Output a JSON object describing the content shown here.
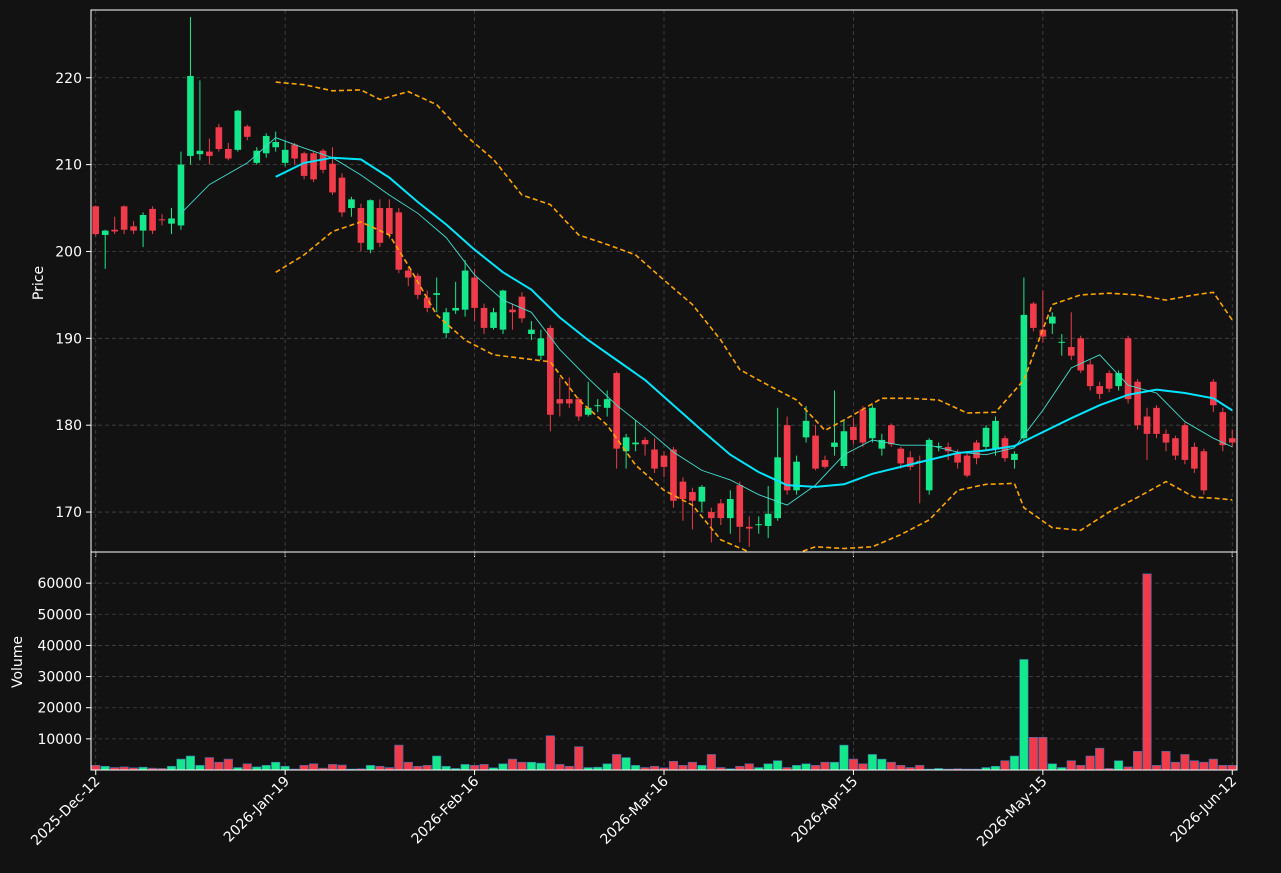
{
  "chart_data": [
    {
      "type": "candlestick",
      "ylabel": "Price",
      "xlim": [
        -0.5,
        120.5
      ],
      "ylim": [
        165.4,
        227.8
      ],
      "yticks": [
        170,
        180,
        190,
        200,
        210,
        220
      ],
      "grid": true,
      "up_color": "#14e88a",
      "down_color": "#ef3b4a",
      "open": [
        205.2,
        201.9,
        202.5,
        205.2,
        202.9,
        202.4,
        204.9,
        203.7,
        203.2,
        203,
        211,
        211.2,
        211.5,
        214.3,
        211.8,
        211.7,
        214.4,
        210.2,
        211.3,
        212,
        210.2,
        212.3,
        211.3,
        211.3,
        211.6,
        210.1,
        208.5,
        205,
        205,
        200.2,
        205,
        205,
        204.5,
        197.8,
        197.2,
        194.7,
        195,
        190.6,
        193.2,
        193.3,
        197,
        193.5,
        191.2,
        191,
        193.3,
        194.8,
        190.5,
        188,
        191.2,
        183,
        183,
        183,
        181.2,
        182.2,
        182,
        186,
        177,
        177.8,
        178.3,
        177.2,
        176.5,
        177.2,
        173.5,
        172.3,
        171.2,
        170,
        171,
        169.3,
        173.1,
        168.3,
        168.5,
        168.4,
        169.3,
        180,
        172.5,
        178.6,
        178.8,
        176,
        177.5,
        175.3,
        179.8,
        181.8,
        178.5,
        177.3,
        180,
        177.3,
        176.3,
        175.9,
        172.5,
        177.5,
        177.5,
        176.8,
        176.5,
        178,
        177.5,
        177.2,
        178.5,
        176,
        178.5,
        194,
        191,
        191.7,
        189.5,
        189,
        190,
        187,
        184.5,
        186,
        184.5,
        190,
        185,
        181,
        182,
        179,
        178.5,
        180,
        177.5,
        177,
        185,
        181.5,
        178.5
      ],
      "high": [
        205.3,
        202.5,
        204,
        205.3,
        203.5,
        204.5,
        205.2,
        204.3,
        205,
        211.5,
        227,
        219.7,
        213,
        214.7,
        212.5,
        216.3,
        214.6,
        212,
        213.6,
        213.8,
        212.8,
        212.5,
        211.5,
        211.6,
        211.8,
        212,
        209,
        206.3,
        205.5,
        206,
        206,
        206,
        205,
        198.2,
        197.5,
        195.5,
        197,
        193.5,
        196.5,
        199,
        198,
        194,
        193.5,
        195.6,
        194,
        195.3,
        192,
        191,
        191.5,
        185.5,
        185.5,
        183.2,
        185,
        183,
        184,
        186.2,
        179,
        180.6,
        178.6,
        178.5,
        177,
        177.5,
        174,
        172.8,
        173.1,
        170.5,
        171.5,
        172.5,
        173.5,
        169.5,
        169.5,
        173,
        182,
        181,
        176.5,
        182.2,
        180,
        176.5,
        184,
        180.5,
        180.8,
        182.2,
        182.3,
        179,
        180.2,
        177.5,
        177,
        176.5,
        178.5,
        178,
        178,
        177.2,
        177,
        178.3,
        180,
        181,
        178.8,
        177,
        197,
        194.2,
        195.5,
        193,
        190.5,
        193,
        190.3,
        187.5,
        185,
        186.3,
        186.3,
        190.3,
        185.3,
        182,
        182.3,
        179.5,
        178.8,
        180.3,
        178,
        177.3,
        185.3,
        182,
        179.5
      ],
      "low": [
        201.8,
        198,
        202,
        202,
        202,
        200.5,
        202,
        203,
        202,
        202.5,
        210,
        210.5,
        210,
        211.5,
        210.5,
        211.5,
        212.8,
        210,
        210.8,
        211.5,
        209.8,
        210,
        208.3,
        208,
        209,
        206.5,
        204,
        204,
        200,
        199.8,
        200.5,
        201.5,
        197.5,
        196,
        194.5,
        193,
        193,
        190,
        192.8,
        192.5,
        192,
        190.5,
        191,
        190.5,
        191,
        191.8,
        189.8,
        187.5,
        179.3,
        181,
        182,
        180.5,
        181,
        181.5,
        181,
        175,
        175,
        177,
        176.5,
        174.5,
        174,
        170.5,
        169,
        168,
        170,
        166.5,
        168.5,
        167.5,
        166.5,
        166,
        167.5,
        167,
        169,
        172,
        172,
        178,
        174.8,
        175,
        176.5,
        175,
        177.8,
        177.5,
        178,
        176.5,
        177.5,
        175,
        174.8,
        171,
        172,
        177,
        176,
        175,
        174,
        175.5,
        177,
        176.5,
        175.8,
        175,
        178,
        190.8,
        189.5,
        190.5,
        188,
        187.5,
        186,
        184,
        183,
        183.8,
        184,
        182.5,
        179.5,
        176,
        178.5,
        177,
        176,
        175.5,
        174.5,
        172,
        181.5,
        177,
        177.5
      ],
      "close": [
        202,
        202.4,
        202.3,
        202.5,
        202.4,
        204.2,
        202.4,
        203.6,
        203.8,
        210,
        220.2,
        211.6,
        211,
        211.8,
        210.7,
        216.2,
        213.2,
        211.6,
        213.3,
        212.6,
        211.7,
        210.7,
        208.7,
        208.3,
        209.4,
        206.8,
        204.5,
        206,
        201,
        205.9,
        201,
        202,
        197.9,
        197,
        195,
        193.5,
        195.2,
        193,
        193.5,
        197.8,
        193.5,
        191.2,
        193,
        195.5,
        193,
        192.3,
        191,
        190,
        181.2,
        182.5,
        182.5,
        181,
        182,
        182.3,
        183,
        177.3,
        178.6,
        178,
        177.8,
        175,
        175.2,
        171.3,
        171.5,
        171.3,
        172.9,
        169.3,
        169.3,
        171.5,
        168.3,
        168.1,
        168.6,
        169.8,
        176.3,
        172.5,
        175.8,
        180.5,
        175,
        175.2,
        178,
        179.3,
        178.3,
        178,
        182,
        178.3,
        177.8,
        175.6,
        175.2,
        175.7,
        178.3,
        177.6,
        177,
        175.7,
        174.2,
        176.2,
        179.7,
        180.5,
        176.2,
        176.7,
        192.7,
        191.2,
        190.2,
        192.5,
        189.6,
        188,
        186.3,
        184.5,
        183.6,
        184.2,
        186,
        183,
        180,
        179,
        179,
        178,
        176.5,
        176,
        175,
        172.5,
        182.3,
        177.7,
        178
      ],
      "lines": [
        {
          "style": "thin",
          "color": "#40e0d0",
          "x": [
            9,
            12,
            16,
            19,
            22,
            25,
            28,
            31,
            34,
            37,
            40,
            43,
            46,
            49,
            52,
            55,
            58,
            61,
            64,
            67,
            70,
            73,
            76,
            79,
            82,
            85,
            88,
            91,
            94,
            97,
            100,
            103,
            106,
            109,
            112,
            115,
            118,
            120
          ],
          "values": [
            204.4,
            207.7,
            210.2,
            213.1,
            211.9,
            210.8,
            208.8,
            206.5,
            204.4,
            201.6,
            197.3,
            194.4,
            193,
            188.7,
            185.4,
            182.3,
            179.7,
            176.9,
            174.8,
            173.7,
            172,
            170.8,
            173.1,
            176.6,
            178.3,
            177.7,
            177.7,
            176.9,
            176.6,
            177.4,
            181.7,
            186.6,
            188.1,
            184.6,
            183.7,
            180.4,
            178.5,
            177.5
          ]
        },
        {
          "style": "thick",
          "color": "#00e5ff",
          "x": [
            19,
            22,
            25,
            28,
            31,
            34,
            37,
            40,
            43,
            46,
            49,
            52,
            55,
            58,
            61,
            64,
            67,
            70,
            73,
            76,
            79,
            82,
            85,
            88,
            91,
            94,
            97,
            100,
            103,
            106,
            109,
            112,
            115,
            118,
            120
          ],
          "values": [
            208.6,
            210.2,
            210.8,
            210.6,
            208.5,
            205.7,
            203.1,
            200.2,
            197.6,
            195.6,
            192.4,
            189.8,
            187.5,
            185.2,
            182.3,
            179.4,
            176.6,
            174.6,
            173.1,
            172.9,
            173.2,
            174.4,
            175.2,
            176,
            176.8,
            177.1,
            177.6,
            179.2,
            180.8,
            182.3,
            183.5,
            184.1,
            183.7,
            183.1,
            181.7
          ]
        },
        {
          "style": "dashed",
          "color": "#ffa500",
          "x": [
            19,
            22,
            25,
            28,
            30,
            33,
            36,
            39,
            42,
            45,
            48,
            51,
            54,
            57,
            60,
            63,
            66,
            68,
            71,
            74,
            77,
            80,
            83,
            86,
            89,
            92,
            95,
            98,
            101,
            104,
            107,
            110,
            113,
            116,
            118,
            120
          ],
          "values": [
            219.5,
            219.2,
            218.5,
            218.6,
            217.5,
            218.4,
            216.9,
            213.4,
            210.6,
            206.5,
            205.4,
            201.9,
            200.8,
            199.6,
            196.7,
            193.9,
            189.8,
            186.4,
            184.6,
            182.9,
            179.4,
            181.2,
            183.1,
            183.1,
            182.9,
            181.4,
            181.5,
            185.2,
            193.9,
            195,
            195.2,
            195,
            194.4,
            195,
            195.3,
            192.1
          ]
        },
        {
          "style": "dashed",
          "color": "#ffa500",
          "x": [
            19,
            22,
            25,
            28,
            31,
            33,
            36,
            39,
            42,
            45,
            48,
            51,
            54,
            57,
            60,
            63,
            66,
            69,
            72,
            76,
            79,
            82,
            85,
            88,
            91,
            94,
            97,
            98,
            101,
            104,
            107,
            110,
            113,
            116,
            118,
            120
          ],
          "values": [
            197.6,
            199.6,
            202.3,
            203.4,
            201.9,
            198.4,
            192.7,
            189.8,
            188.1,
            187.7,
            187.3,
            182.9,
            180,
            175.4,
            172.5,
            170.8,
            166.8,
            165.4,
            164.5,
            166,
            165.8,
            166,
            167.4,
            169.1,
            172.5,
            173.2,
            173.3,
            170.5,
            168.2,
            167.9,
            170,
            171.7,
            173.5,
            171.7,
            171.6,
            171.4
          ]
        }
      ]
    },
    {
      "type": "bar",
      "ylabel": "Volume",
      "xlim": [
        -0.5,
        120.5
      ],
      "ylim": [
        0,
        70000
      ],
      "yticks": [
        10000,
        20000,
        30000,
        40000,
        50000,
        60000
      ],
      "grid": true,
      "xticks": [
        {
          "value": 0,
          "label": "2025-Dec-12"
        },
        {
          "value": 20,
          "label": "2026-Jan-19"
        },
        {
          "value": 40,
          "label": "2026-Feb-16"
        },
        {
          "value": 60,
          "label": "2026-Mar-16"
        },
        {
          "value": 80,
          "label": "2026-Apr-15"
        },
        {
          "value": 100,
          "label": "2026-May-15"
        },
        {
          "value": 120,
          "label": "2026-Jun-12"
        }
      ],
      "values": [
        1500,
        1200,
        800,
        1000,
        700,
        900,
        600,
        500,
        1200,
        3500,
        4500,
        1500,
        4000,
        2500,
        3500,
        800,
        2000,
        1000,
        1500,
        2500,
        1200,
        300,
        1500,
        2000,
        600,
        1800,
        1600,
        300,
        400,
        1500,
        1200,
        800,
        8000,
        2500,
        1200,
        1500,
        4500,
        1200,
        500,
        1800,
        1500,
        1800,
        700,
        2000,
        3500,
        2500,
        2500,
        2200,
        11000,
        1800,
        1200,
        7500,
        800,
        900,
        2000,
        5000,
        4000,
        1500,
        800,
        1200,
        700,
        2800,
        1500,
        2500,
        1500,
        5000,
        800,
        400,
        1200,
        2000,
        800,
        2000,
        3000,
        800,
        1500,
        2000,
        1500,
        2500,
        2500,
        8000,
        3500,
        2000,
        5000,
        3500,
        2500,
        1500,
        800,
        1500,
        300,
        500,
        300,
        400,
        300,
        300,
        800,
        1200,
        3000,
        4500,
        35500,
        10500,
        10500,
        2000,
        800,
        3000,
        1500,
        4500,
        7000,
        500,
        3000,
        1000,
        6000,
        63000,
        1500,
        6000,
        2500,
        5000,
        3000,
        2500,
        3500,
        1500,
        1500
      ]
    }
  ]
}
